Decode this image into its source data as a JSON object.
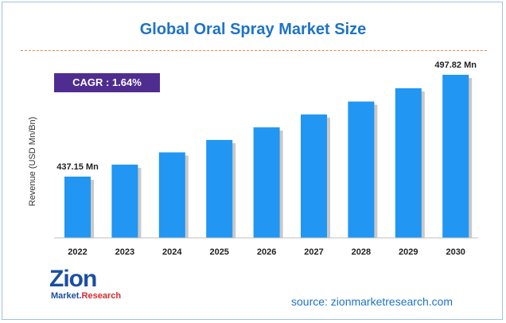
{
  "title": "Global Oral Spray Market Size",
  "cagr": "CAGR : 1.64%",
  "source": "source: zionmarketresearch.com",
  "logo": {
    "main": "Zion",
    "sub_left": "Market.",
    "sub_right": "Research"
  },
  "colors": {
    "bar": "#2196f3",
    "bar_shadow": "#c9c9c9",
    "title": "#1e73c8",
    "cagr_bg": "#4f2d90",
    "divider": "#e8864a"
  },
  "chart_data": {
    "type": "bar",
    "title": "Global Oral Spray Market Size",
    "ylabel": "Revenue (USD Mn/Bn)",
    "xlabel": "",
    "categories": [
      "2022",
      "2023",
      "2024",
      "2025",
      "2026",
      "2027",
      "2028",
      "2029",
      "2030"
    ],
    "values": [
      437.15,
      444.3,
      451.6,
      459.0,
      466.5,
      474.2,
      481.9,
      489.8,
      497.82
    ],
    "ylim": [
      400,
      500
    ],
    "data_labels": [
      "437.15 Mn",
      "",
      "",
      "",
      "",
      "",
      "",
      "",
      "497.82 Mn"
    ],
    "grid": false,
    "legend": "none"
  }
}
